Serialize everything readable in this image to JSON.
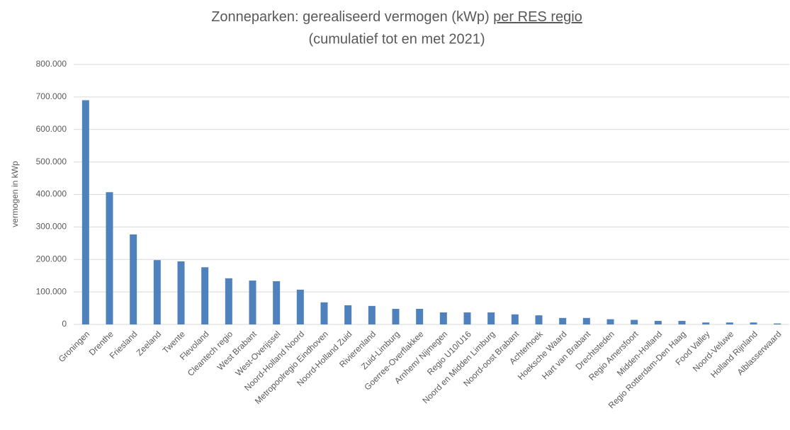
{
  "chart_data": {
    "type": "bar",
    "title": "Zonneparken: gerealiseerd vermogen (kWp)",
    "title_underlined": "per RES regio",
    "subtitle": "(cumulatief tot en met 2021)",
    "y_label": "vermogen in kWp",
    "categories": [
      "Groningen",
      "Drenthe",
      "Friesland",
      "Zeeland",
      "Twente",
      "Flevoland",
      "Cleantech regio",
      "West Brabant",
      "West-Overijssel",
      "Noord-Holland Noord",
      "Metropoolregio Eindhoven",
      "Noord-Holland Zuid",
      "Rivierenland",
      "Zuid-Limburg",
      "Goerree-Overflakkee",
      "Arnhem/ Nijmegen",
      "Regio U10/U16",
      "Noord en Midden Limburg",
      "Noord-oost Brabant",
      "Achterhoek",
      "Hoeksche Waard",
      "Hart van Brabant",
      "Drechtsteden",
      "Regio Amersfoort",
      "Midden-Holland",
      "Regio Rotterdam-Den Haag",
      "Food Valley",
      "Noord-Veluwe",
      "Holland Rijnland",
      "Alblasserwaard"
    ],
    "values": [
      690000,
      407000,
      277000,
      198000,
      194000,
      176000,
      142000,
      135000,
      133000,
      107000,
      68000,
      59000,
      57000,
      48000,
      48000,
      37000,
      37000,
      37000,
      31000,
      28000,
      20000,
      20000,
      16000,
      14000,
      11000,
      11000,
      6000,
      6000,
      6000,
      3000
    ],
    "color": "#4f81bd",
    "ylim": [
      0,
      800000
    ],
    "yticks": [
      0,
      {
        "value": 100000,
        "label": "100.000"
      },
      {
        "value": 200000,
        "label": "200.000"
      },
      {
        "value": 300000,
        "label": "300.000"
      },
      {
        "value": 400000,
        "label": "400.000"
      },
      {
        "value": 500000,
        "label": "500.000"
      },
      {
        "value": 600000,
        "label": "600.000"
      },
      {
        "value": 700000,
        "label": "700.000"
      },
      {
        "value": 800000,
        "label": "800.000"
      }
    ],
    "grid": true
  }
}
